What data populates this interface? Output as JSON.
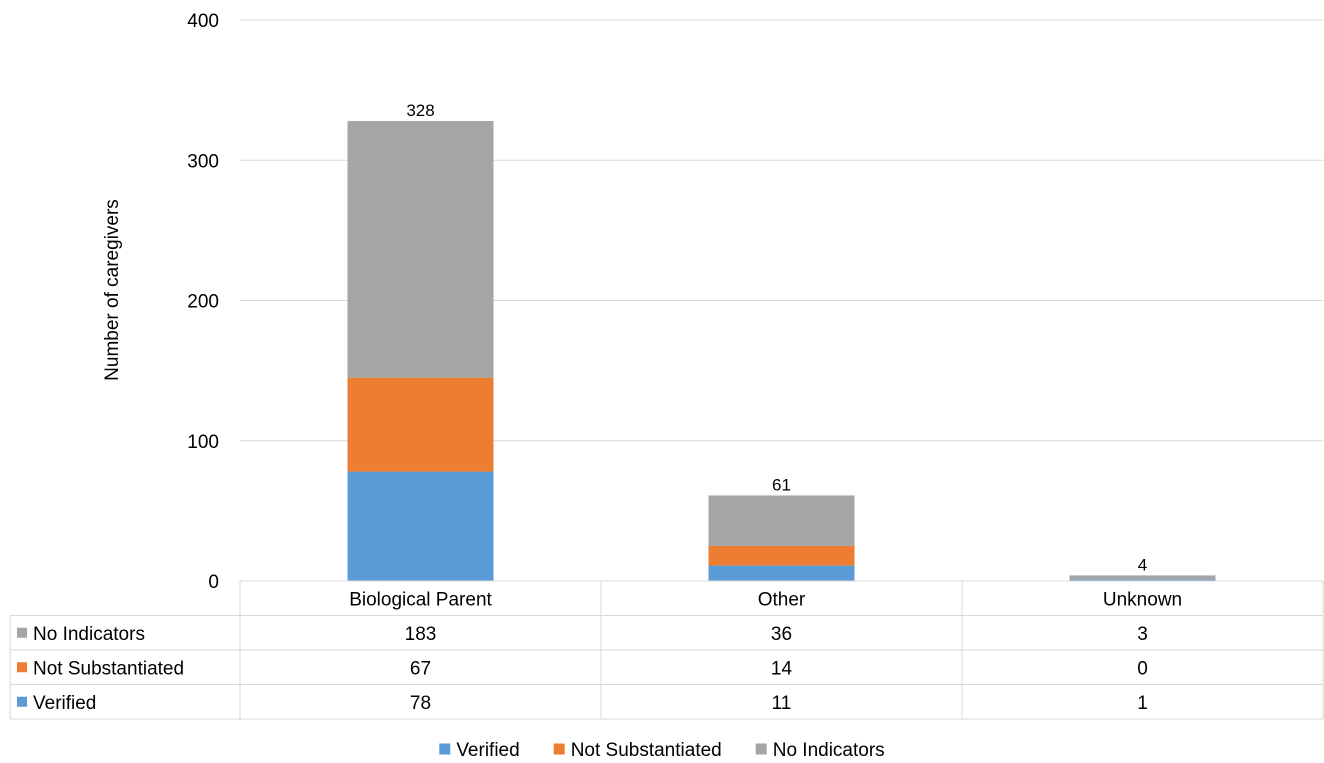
{
  "chart_data": {
    "type": "bar",
    "stacked": true,
    "ylabel": "Number of caregivers",
    "ylim": [
      0,
      400
    ],
    "yticks": [
      0,
      100,
      200,
      300,
      400
    ],
    "grid": true,
    "legend": "bottom",
    "data_table": true,
    "categories": [
      "Biological Parent",
      "Other",
      "Unknown"
    ],
    "totals": [
      328,
      61,
      4
    ],
    "series": [
      {
        "name": "Verified",
        "color": "#5B9BD5",
        "values": [
          78,
          11,
          1
        ]
      },
      {
        "name": "Not Substantiated",
        "color": "#ED7D31",
        "values": [
          67,
          14,
          0
        ]
      },
      {
        "name": "No Indicators",
        "color": "#A5A5A5",
        "values": [
          183,
          36,
          3
        ]
      }
    ]
  }
}
